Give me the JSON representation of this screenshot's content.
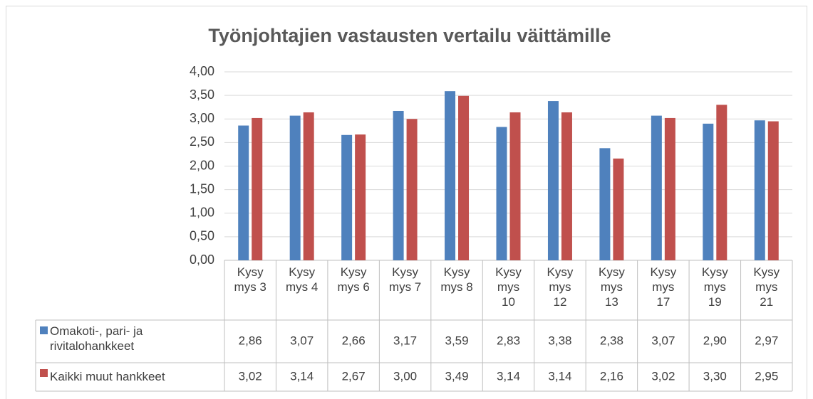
{
  "chart_data": {
    "type": "bar",
    "title": "Työnjohtajien vastausten vertailu väittämille",
    "categories": [
      "Kysymys 3",
      "Kysymys 4",
      "Kysymys 6",
      "Kysymys 7",
      "Kysymys 8",
      "Kysymys 10",
      "Kysymys 12",
      "Kysymys 13",
      "Kysymys 17",
      "Kysymys 19",
      "Kysymys 21"
    ],
    "series": [
      {
        "name": "Omakoti-, pari- ja rivitalohankkeet",
        "color": "#4f81bd",
        "values": [
          2.86,
          3.07,
          2.66,
          3.17,
          3.59,
          2.83,
          3.38,
          2.38,
          3.07,
          2.9,
          2.97
        ],
        "value_labels": [
          "2,86",
          "3,07",
          "2,66",
          "3,17",
          "3,59",
          "2,83",
          "3,38",
          "2,38",
          "3,07",
          "2,90",
          "2,97"
        ]
      },
      {
        "name": "Kaikki muut hankkeet",
        "color": "#c0504d",
        "values": [
          3.02,
          3.14,
          2.67,
          3.0,
          3.49,
          3.14,
          3.14,
          2.16,
          3.02,
          3.3,
          2.95
        ],
        "value_labels": [
          "3,02",
          "3,14",
          "2,67",
          "3,00",
          "3,49",
          "3,14",
          "3,14",
          "2,16",
          "3,02",
          "3,30",
          "2,95"
        ]
      }
    ],
    "ylim": [
      0,
      4
    ],
    "yticks": [
      {
        "value": 0,
        "label": "0,00"
      },
      {
        "value": 0.5,
        "label": "0,50"
      },
      {
        "value": 1,
        "label": "1,00"
      },
      {
        "value": 1.5,
        "label": "1,50"
      },
      {
        "value": 2,
        "label": "2,00"
      },
      {
        "value": 2.5,
        "label": "2,50"
      },
      {
        "value": 3,
        "label": "3,00"
      },
      {
        "value": 3.5,
        "label": "3,50"
      },
      {
        "value": 4,
        "label": "4,00"
      }
    ],
    "grid": true
  }
}
